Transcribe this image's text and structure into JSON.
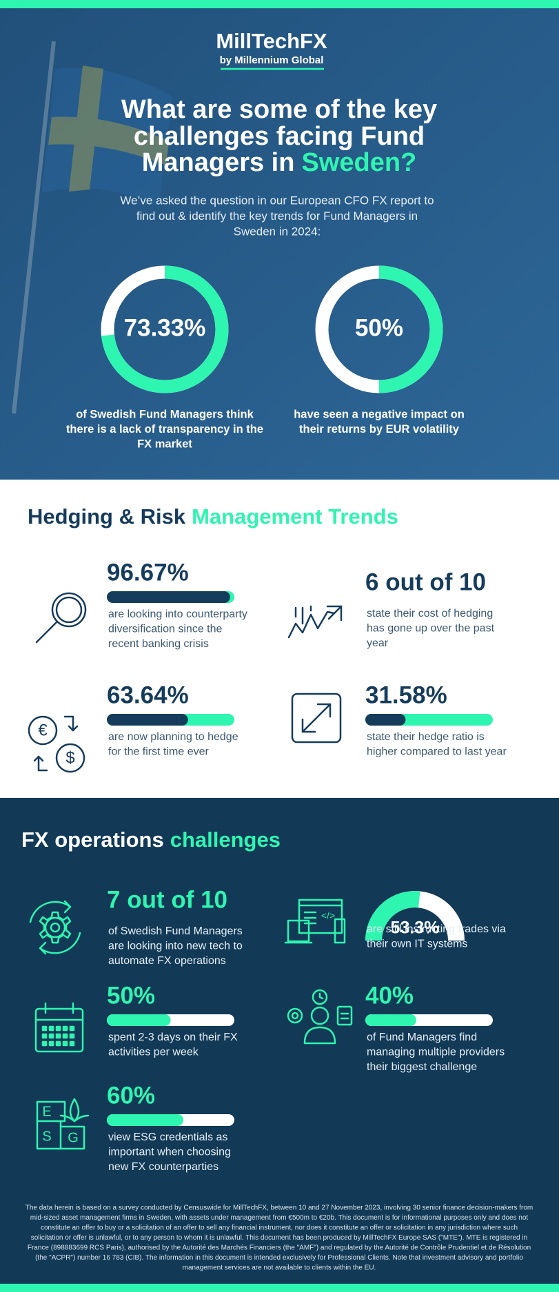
{
  "header": {
    "logo": "MillTechFX",
    "logo_sub": "by Millennium Global",
    "title_lines": [
      "What are some of the key",
      "challenges facing Fund",
      "Managers in"
    ],
    "title_highlight": "Sweden?",
    "intro_lines": [
      "We’ve asked the question in our European CFO FX report to",
      "find out & identify the key trends for Fund Managers in",
      "Sweden in 2024:"
    ]
  },
  "donuts": [
    {
      "value": 73.33,
      "label": "73.33%",
      "caption_lines": [
        "of Swedish Fund Managers think",
        "there is a lack of transparency in the",
        "FX market"
      ]
    },
    {
      "value": 50,
      "label": "50%",
      "caption_lines": [
        "have seen a negative impact on",
        "their returns by EUR volatility"
      ]
    }
  ],
  "hedging": {
    "title": "Hedging & Risk",
    "title_highlight": "Management Trends",
    "items": [
      {
        "headline": {
          "value": 96.67,
          "label": "96.67%"
        },
        "text_lines": [
          "are looking into counterparty",
          "diversification since the",
          "recent banking crisis"
        ]
      },
      {
        "headline": "6 out of 10",
        "text_lines": [
          "state their cost of hedging",
          "has gone up over the past",
          "year"
        ]
      },
      {
        "headline": {
          "value": 63.64,
          "label": "63.64%"
        },
        "text_lines": [
          "are now planning to hedge",
          "for the first time ever"
        ]
      },
      {
        "headline": {
          "value": 31.58,
          "label": "31.58%"
        },
        "text_lines": [
          "state their hedge ratio is",
          "higher compared to last year"
        ]
      }
    ]
  },
  "fx": {
    "title": "FX operations",
    "title_highlight": "challenges",
    "items": [
      {
        "headline": "7 out of 10",
        "text_lines": [
          "of Swedish Fund Managers",
          "are looking into new tech to",
          "automate FX operations"
        ]
      },
      {
        "headline": {
          "value": 53.3,
          "label": "53.3%"
        },
        "text_lines": [
          "are still instructing trades via",
          "their own IT systems"
        ]
      },
      {
        "headline": {
          "value": 50,
          "label": "50%"
        },
        "text_lines": [
          "spent 2-3 days on their FX",
          "activities per week"
        ]
      },
      {
        "headline": {
          "value": 40,
          "label": "40%"
        },
        "text_lines": [
          "of Fund Managers find",
          "managing multiple providers",
          "their biggest challenge"
        ]
      },
      {
        "headline": {
          "value": 60,
          "label": "60%"
        },
        "text_lines": [
          "view ESG credentials as",
          "important when choosing",
          "new FX counterparties"
        ]
      }
    ]
  },
  "footer_lines": [
    "The data herein is based on a survey conducted by Censuswide for MillTechFX, between 10 and 27 November 2023, involving 30 senior finance decision-makers from",
    "mid-sized asset management firms in Sweden, with assets under management from €500m to €20b. This document is for informational purposes only and does not",
    "constitute an offer to buy or a solicitation of an offer to sell any financial instrument, nor does it constitute an offer or solicitation in any jurisdiction where such",
    "solicitation or offer is unlawful, or to any person to whom it is unlawful. This document has been produced by MillTechFX Europe SAS (\"MTE\"). MTE is registered in",
    "France (898883699 RCS Paris), authorised by the Autorité des Marchés Financiers (the \"AMF\") and regulated by the Autorité de Contrôle Prudentiel et de Résolution",
    "(the \"ACPR\") number 16 783 (CIB). The information in this document is intended exclusively for Professional Clients. Note that investment advisory and portfolio",
    "management services are not available to clients within the EU."
  ]
}
